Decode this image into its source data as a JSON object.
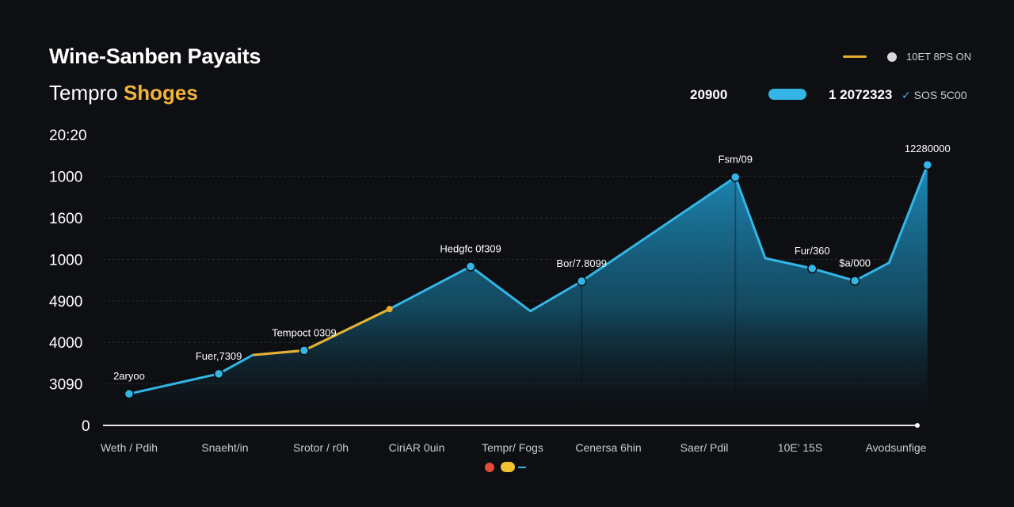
{
  "header": {
    "title": "Wine-Sanben Payaits",
    "subtitle_main": "Tempro",
    "subtitle_accent": "Shoges",
    "legend_label": "10ET 8PS ON",
    "stat_label": "20900",
    "stat_value": "1 2072323",
    "stat_value2": "SOS 5C00"
  },
  "colors": {
    "background": "#0d0f12",
    "line_primary": "#33b6e6",
    "line_highlight": "#e7ae2f",
    "grid": "#2a2d33",
    "area_top": "#1e8fbf",
    "legend_red": "#e64a3b",
    "legend_yellow": "#f2c230"
  },
  "chart_data": {
    "type": "area",
    "y_ticks": [
      "0",
      "3090",
      "4000",
      "4900",
      "1000",
      "1600",
      "1000",
      "20:20"
    ],
    "x_ticks": [
      "Weth / Pdih",
      "Snaeht/in",
      "Srotor / r0h",
      "CiriAR 0uin",
      "Tempr/ Fogs",
      "Cenersa 6hin",
      "Saer/ Pdil",
      "10E' 15S",
      "Avodsunfige"
    ],
    "y_range": [
      0,
      7
    ],
    "grid": true,
    "highlight_segment": [
      2,
      4
    ],
    "points": [
      {
        "x": 0.25,
        "y": 0.77,
        "label": "2aryoo"
      },
      {
        "x": 1.3,
        "y": 1.26,
        "label": "Fuer,7309"
      },
      {
        "x": 1.7,
        "y": 1.72
      },
      {
        "x": 2.3,
        "y": 1.83,
        "label": "Tempoct 0309"
      },
      {
        "x": 3.3,
        "y": 2.84
      },
      {
        "x": 4.25,
        "y": 3.88,
        "label": "Hedgfc 0f309"
      },
      {
        "x": 4.95,
        "y": 2.79
      },
      {
        "x": 5.55,
        "y": 3.52,
        "label": "Bor/7.8099"
      },
      {
        "x": 7.35,
        "y": 6.06,
        "label": "Fsm/09"
      },
      {
        "x": 7.7,
        "y": 4.08
      },
      {
        "x": 8.25,
        "y": 3.83,
        "label": "Fur/360"
      },
      {
        "x": 8.75,
        "y": 3.53,
        "label": "$a/000"
      },
      {
        "x": 9.15,
        "y": 3.97
      },
      {
        "x": 9.6,
        "y": 6.36,
        "label": "12280000"
      }
    ]
  }
}
